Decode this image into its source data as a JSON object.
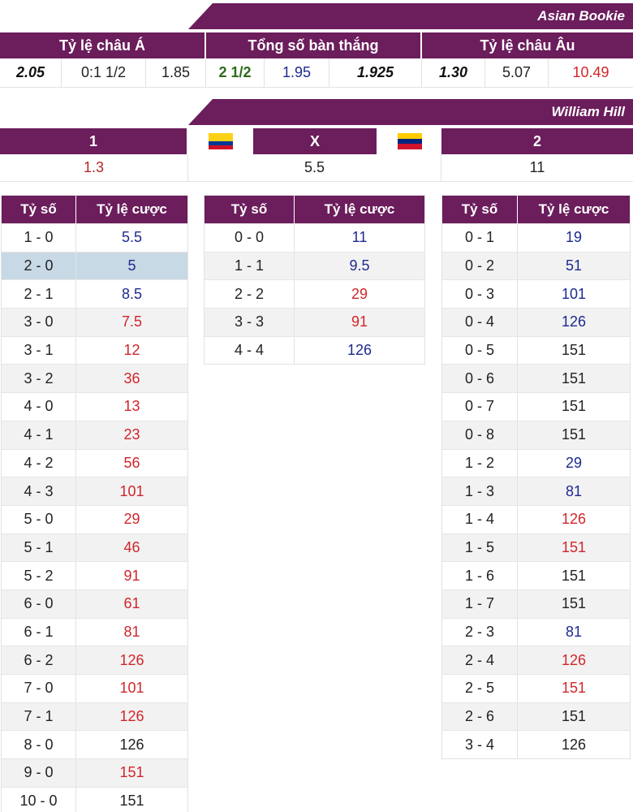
{
  "asian_bookie": {
    "banner": "Asian Bookie",
    "headers": [
      "Tỷ lệ châu Á",
      "Tổng số bàn thắng",
      "Tỷ lệ châu Âu"
    ],
    "values": [
      {
        "text": "2.05",
        "style": "bold-it"
      },
      {
        "text": "0:1 1/2",
        "style": "black"
      },
      {
        "text": "1.85",
        "style": "black"
      },
      {
        "text": "2 1/2",
        "style": "green"
      },
      {
        "text": "1.95",
        "style": "blue"
      },
      {
        "text": "1.925",
        "style": "bold-it"
      },
      {
        "text": "1.30",
        "style": "bold-it"
      },
      {
        "text": "5.07",
        "style": "black"
      },
      {
        "text": "10.49",
        "style": "red"
      }
    ]
  },
  "william_hill": {
    "banner": "William Hill",
    "headers": [
      "1",
      "X",
      "2"
    ],
    "values": [
      "1.3",
      "5.5",
      "11"
    ],
    "home_flag": "colombia-flag",
    "away_flag": "venezuela-flag"
  },
  "score_tables": {
    "col_score": "Tỷ số",
    "col_odds": "Tỷ lệ cược",
    "home_wins": [
      {
        "score": "1 - 0",
        "odds": "5.5",
        "color": "blue"
      },
      {
        "score": "2 - 0",
        "odds": "5",
        "color": "blue",
        "highlight": true
      },
      {
        "score": "2 - 1",
        "odds": "8.5",
        "color": "blue"
      },
      {
        "score": "3 - 0",
        "odds": "7.5",
        "color": "red"
      },
      {
        "score": "3 - 1",
        "odds": "12",
        "color": "red"
      },
      {
        "score": "3 - 2",
        "odds": "36",
        "color": "red"
      },
      {
        "score": "4 - 0",
        "odds": "13",
        "color": "red"
      },
      {
        "score": "4 - 1",
        "odds": "23",
        "color": "red"
      },
      {
        "score": "4 - 2",
        "odds": "56",
        "color": "red"
      },
      {
        "score": "4 - 3",
        "odds": "101",
        "color": "red"
      },
      {
        "score": "5 - 0",
        "odds": "29",
        "color": "red"
      },
      {
        "score": "5 - 1",
        "odds": "46",
        "color": "red"
      },
      {
        "score": "5 - 2",
        "odds": "91",
        "color": "red"
      },
      {
        "score": "6 - 0",
        "odds": "61",
        "color": "red"
      },
      {
        "score": "6 - 1",
        "odds": "81",
        "color": "red"
      },
      {
        "score": "6 - 2",
        "odds": "126",
        "color": "red"
      },
      {
        "score": "7 - 0",
        "odds": "101",
        "color": "red"
      },
      {
        "score": "7 - 1",
        "odds": "126",
        "color": "red"
      },
      {
        "score": "8 - 0",
        "odds": "126",
        "color": "black"
      },
      {
        "score": "9 - 0",
        "odds": "151",
        "color": "red"
      },
      {
        "score": "10 - 0",
        "odds": "151",
        "color": "black"
      }
    ],
    "draws": [
      {
        "score": "0 - 0",
        "odds": "11",
        "color": "blue"
      },
      {
        "score": "1 - 1",
        "odds": "9.5",
        "color": "blue"
      },
      {
        "score": "2 - 2",
        "odds": "29",
        "color": "red"
      },
      {
        "score": "3 - 3",
        "odds": "91",
        "color": "red"
      },
      {
        "score": "4 - 4",
        "odds": "126",
        "color": "blue"
      }
    ],
    "away_wins": [
      {
        "score": "0 - 1",
        "odds": "19",
        "color": "blue"
      },
      {
        "score": "0 - 2",
        "odds": "51",
        "color": "blue"
      },
      {
        "score": "0 - 3",
        "odds": "101",
        "color": "blue"
      },
      {
        "score": "0 - 4",
        "odds": "126",
        "color": "blue"
      },
      {
        "score": "0 - 5",
        "odds": "151",
        "color": "black"
      },
      {
        "score": "0 - 6",
        "odds": "151",
        "color": "black"
      },
      {
        "score": "0 - 7",
        "odds": "151",
        "color": "black"
      },
      {
        "score": "0 - 8",
        "odds": "151",
        "color": "black"
      },
      {
        "score": "1 - 2",
        "odds": "29",
        "color": "blue"
      },
      {
        "score": "1 - 3",
        "odds": "81",
        "color": "blue"
      },
      {
        "score": "1 - 4",
        "odds": "126",
        "color": "red"
      },
      {
        "score": "1 - 5",
        "odds": "151",
        "color": "red"
      },
      {
        "score": "1 - 6",
        "odds": "151",
        "color": "black"
      },
      {
        "score": "1 - 7",
        "odds": "151",
        "color": "black"
      },
      {
        "score": "2 - 3",
        "odds": "81",
        "color": "blue"
      },
      {
        "score": "2 - 4",
        "odds": "126",
        "color": "red"
      },
      {
        "score": "2 - 5",
        "odds": "151",
        "color": "red"
      },
      {
        "score": "2 - 6",
        "odds": "151",
        "color": "black"
      },
      {
        "score": "3 - 4",
        "odds": "126",
        "color": "black"
      }
    ]
  },
  "colors": {
    "header_bg": "#6b1d5c",
    "blue": "#1d2a8f",
    "red": "#d0262b",
    "highlight": "#c8d9e6"
  }
}
